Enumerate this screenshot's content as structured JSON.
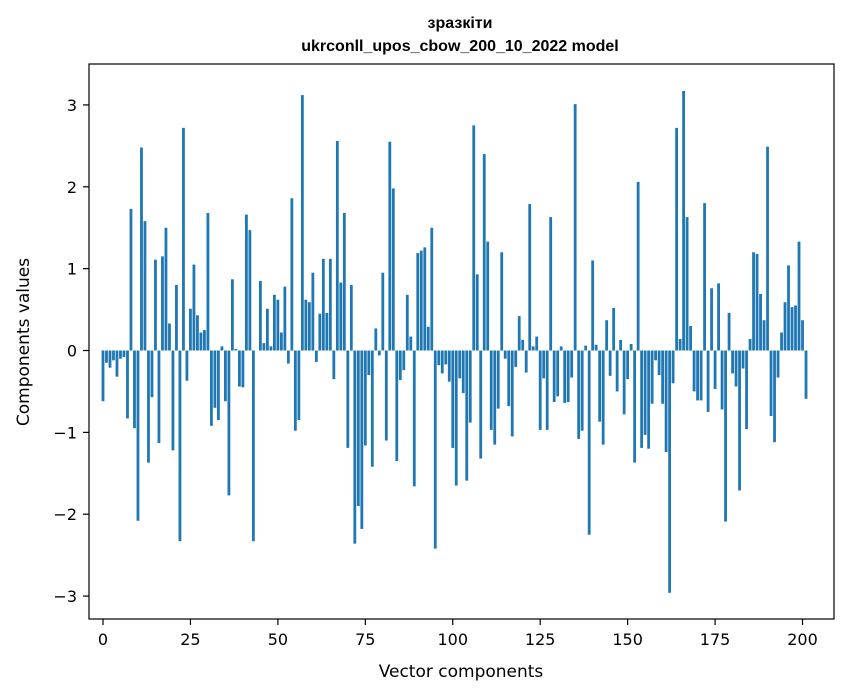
{
  "chart_data": {
    "type": "bar",
    "title_line1": "зразкіти",
    "title_line2": "ukrconll_upos_cbow_200_10_2022 model",
    "xlabel": "Vector components",
    "ylabel": "Components values",
    "xlim": [
      -4,
      209
    ],
    "ylim": [
      -3.28,
      3.5
    ],
    "x_ticks": [
      0,
      25,
      50,
      75,
      100,
      125,
      150,
      175,
      200
    ],
    "y_ticks": [
      -3,
      -2,
      -1,
      0,
      1,
      2,
      3
    ],
    "x_tick_labels": [
      "0",
      "25",
      "50",
      "75",
      "100",
      "125",
      "150",
      "175",
      "200"
    ],
    "y_tick_labels": [
      "−3",
      "−2",
      "−1",
      "0",
      "1",
      "2",
      "3"
    ],
    "bar_color": "#1f77b4",
    "grid": false,
    "values": [
      -0.62,
      -0.15,
      -0.21,
      -0.12,
      -0.32,
      -0.1,
      -0.08,
      -0.83,
      1.73,
      -0.95,
      -2.08,
      2.48,
      1.58,
      -1.37,
      -0.57,
      1.11,
      -1.13,
      1.15,
      1.5,
      0.33,
      -1.22,
      0.8,
      -2.33,
      2.72,
      -0.37,
      0.51,
      1.05,
      0.43,
      0.22,
      0.25,
      1.68,
      -0.92,
      -0.7,
      -0.85,
      0.05,
      -0.62,
      -1.77,
      0.87,
      0.02,
      -0.44,
      -0.45,
      1.66,
      1.47,
      -2.33,
      0.0,
      0.85,
      0.09,
      0.51,
      0.05,
      0.68,
      0.62,
      0.22,
      0.78,
      -0.16,
      1.86,
      -0.98,
      -0.85,
      3.12,
      0.62,
      0.59,
      0.95,
      -0.14,
      0.45,
      1.12,
      0.46,
      1.12,
      -0.35,
      2.56,
      0.83,
      1.68,
      -1.19,
      0.8,
      -2.36,
      -1.9,
      -2.18,
      -1.16,
      -0.3,
      -1.42,
      0.27,
      -0.06,
      0.95,
      -1.1,
      2.55,
      1.98,
      -1.35,
      -0.36,
      -0.24,
      0.68,
      0.17,
      -1.66,
      1.19,
      1.22,
      1.26,
      0.29,
      1.5,
      -2.42,
      -0.18,
      -0.28,
      -0.17,
      -0.38,
      -1.19,
      -1.65,
      -0.34,
      -0.52,
      -1.59,
      -0.88,
      2.75,
      0.93,
      -1.32,
      2.4,
      1.33,
      -0.97,
      -1.15,
      -0.71,
      1.2,
      -0.1,
      -0.68,
      -1.05,
      -0.2,
      0.42,
      0.13,
      -0.27,
      1.79,
      0.05,
      0.17,
      -0.97,
      -0.34,
      -0.97,
      1.63,
      -0.63,
      -0.56,
      0.05,
      -0.64,
      -0.63,
      -0.33,
      3.01,
      -1.08,
      -0.98,
      0.06,
      -2.25,
      1.1,
      0.07,
      -0.87,
      -1.15,
      0.37,
      -0.31,
      0.52,
      -0.5,
      0.13,
      -0.78,
      -0.35,
      0.08,
      -1.37,
      2.06,
      -1.19,
      -1.03,
      -1.2,
      -0.65,
      -0.12,
      -0.3,
      -0.65,
      -1.24,
      -2.96,
      -0.4,
      2.72,
      0.14,
      3.17,
      1.63,
      0.3,
      -0.5,
      -0.61,
      -0.61,
      1.8,
      -0.75,
      0.76,
      -0.47,
      0.82,
      -0.72,
      -2.09,
      0.46,
      -0.28,
      -0.44,
      -1.71,
      -0.22,
      -0.96,
      0.14,
      1.2,
      1.18,
      0.69,
      0.37,
      2.49,
      -0.8,
      -1.12,
      -0.33,
      0.22,
      0.59,
      1.04,
      0.53,
      0.55,
      1.33,
      0.37,
      -0.59
    ]
  }
}
